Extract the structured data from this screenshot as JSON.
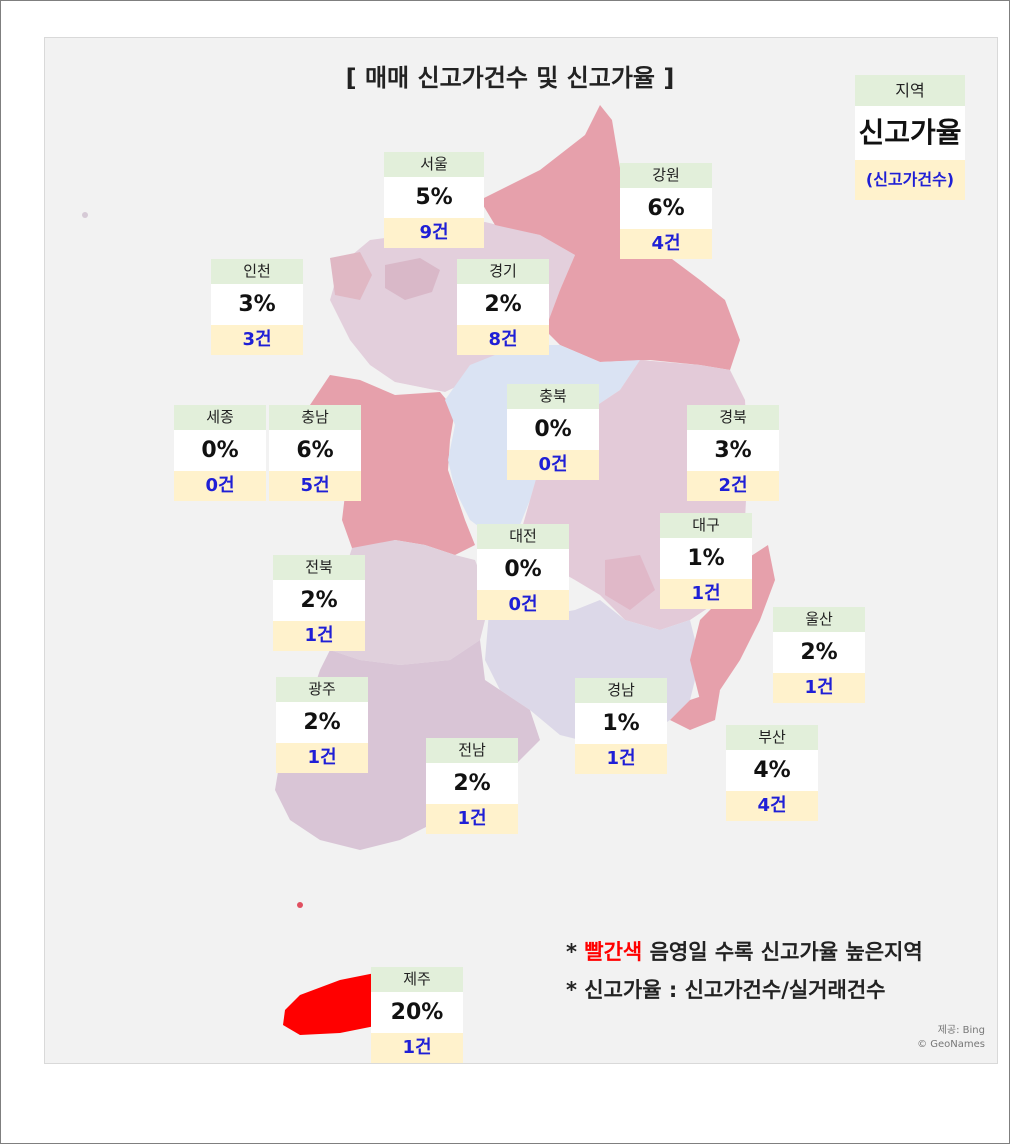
{
  "title": "[ 매매 신고가건수 및 신고가율 ]",
  "legend": {
    "region": "지역",
    "rate": "신고가율",
    "count": "(신고가건수)"
  },
  "notes": {
    "line1_prefix": "* ",
    "line1_red": "빨간색",
    "line1_rest": " 음영일 수록 신고가율 높은지역",
    "line2": "* 신고가율 : 신고가건수/실거래건수"
  },
  "credit": {
    "line1": "제공: Bing",
    "line2": "© GeoNames"
  },
  "colors": {
    "high": "#ff0000",
    "mid": "#e6a0ab",
    "low": "#e0d0dc",
    "zero": "#dae3f3",
    "name_bg": "#e2efda",
    "count_bg": "#fff2cc",
    "count_text": "#1f1fd6"
  },
  "regions": [
    {
      "id": "seoul",
      "name": "서울",
      "rate": "5%",
      "count": "9건"
    },
    {
      "id": "gangwon",
      "name": "강원",
      "rate": "6%",
      "count": "4건"
    },
    {
      "id": "incheon",
      "name": "인천",
      "rate": "3%",
      "count": "3건"
    },
    {
      "id": "gyeonggi",
      "name": "경기",
      "rate": "2%",
      "count": "8건"
    },
    {
      "id": "chungbuk",
      "name": "충북",
      "rate": "0%",
      "count": "0건"
    },
    {
      "id": "sejong",
      "name": "세종",
      "rate": "0%",
      "count": "0건"
    },
    {
      "id": "chungnam",
      "name": "충남",
      "rate": "6%",
      "count": "5건"
    },
    {
      "id": "gyeongbuk",
      "name": "경북",
      "rate": "3%",
      "count": "2건"
    },
    {
      "id": "daejeon",
      "name": "대전",
      "rate": "0%",
      "count": "0건"
    },
    {
      "id": "daegu",
      "name": "대구",
      "rate": "1%",
      "count": "1건"
    },
    {
      "id": "jeonbuk",
      "name": "전북",
      "rate": "2%",
      "count": "1건"
    },
    {
      "id": "ulsan",
      "name": "울산",
      "rate": "2%",
      "count": "1건"
    },
    {
      "id": "gwangju",
      "name": "광주",
      "rate": "2%",
      "count": "1건"
    },
    {
      "id": "gyeongnam",
      "name": "경남",
      "rate": "1%",
      "count": "1건"
    },
    {
      "id": "busan",
      "name": "부산",
      "rate": "4%",
      "count": "4건"
    },
    {
      "id": "jeonnam",
      "name": "전남",
      "rate": "2%",
      "count": "1건"
    },
    {
      "id": "jeju",
      "name": "제주",
      "rate": "20%",
      "count": "1건"
    }
  ]
}
